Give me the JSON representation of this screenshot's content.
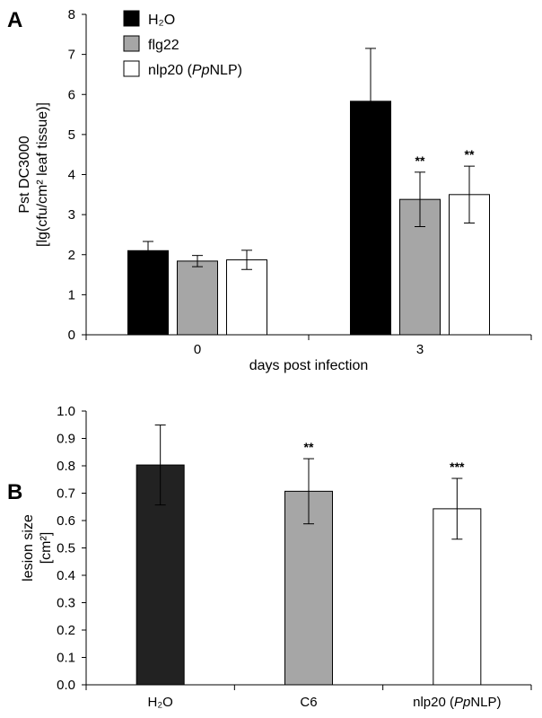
{
  "chart_data": [
    {
      "type": "bar",
      "panel_label": "A",
      "categories": [
        "0",
        "3"
      ],
      "xlabel": "days post infection",
      "ylabel_lines": [
        "Pst DC3000",
        "[lg(cfu/cm² leaf tissue)]"
      ],
      "ylim": [
        0,
        8
      ],
      "yticks": [
        0,
        1,
        2,
        3,
        4,
        5,
        6,
        7,
        8
      ],
      "grid": false,
      "legend_position": "top-left",
      "series": [
        {
          "name": "H₂O",
          "color": "#000000",
          "values": [
            2.1,
            5.83
          ],
          "errors": [
            0.23,
            1.32
          ],
          "significance": [
            "",
            ""
          ]
        },
        {
          "name": "flg22",
          "color": "#a6a6a6",
          "values": [
            1.84,
            3.38
          ],
          "errors": [
            0.14,
            0.68
          ],
          "significance": [
            "",
            "**"
          ]
        },
        {
          "name": "nlp20 (PpNLP)",
          "name_parts": [
            "nlp20 (",
            "Pp",
            "NLP)"
          ],
          "color": "#ffffff",
          "values": [
            1.87,
            3.5
          ],
          "errors": [
            0.24,
            0.71
          ],
          "significance": [
            "",
            "**"
          ]
        }
      ]
    },
    {
      "type": "bar",
      "panel_label": "B",
      "categories": [
        "H₂O",
        "C6",
        "nlp20 (PpNLP)"
      ],
      "category_parts": [
        [
          "H₂O"
        ],
        [
          "C6"
        ],
        [
          "nlp20 (",
          "Pp",
          "NLP)"
        ]
      ],
      "xlabel": "",
      "ylabel_lines": [
        "lesion size",
        "[cm²]"
      ],
      "ylim": [
        0,
        1.0
      ],
      "yticks": [
        0.0,
        0.1,
        0.2,
        0.3,
        0.4,
        0.5,
        0.6,
        0.7,
        0.8,
        0.9,
        1.0
      ],
      "ytick_labels": [
        "0.0",
        "0.1",
        "0.2",
        "0.3",
        "0.4",
        "0.5",
        "0.6",
        "0.7",
        "0.8",
        "0.9",
        "1.0"
      ],
      "grid": false,
      "values": [
        0.803,
        0.707,
        0.643
      ],
      "errors": [
        0.146,
        0.119,
        0.111
      ],
      "colors": [
        "#222222",
        "#a6a6a6",
        "#ffffff"
      ],
      "significance": [
        "",
        "**",
        "***"
      ]
    }
  ]
}
